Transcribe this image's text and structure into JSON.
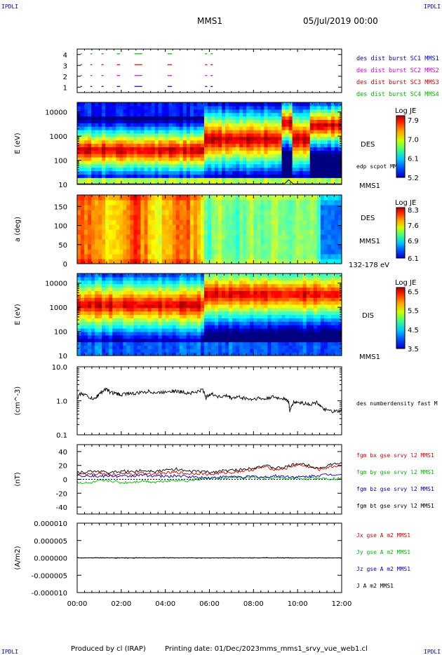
{
  "header": {
    "corner_tl": "IPDLI",
    "corner_tr": "IPDLI",
    "corner_bl": "IPDLI",
    "corner_br": "IPDLI",
    "mission": "MMS1",
    "date": "05/Jul/2019 00:00"
  },
  "footer": {
    "produced_by": "Produced by cl (IRAP)",
    "printing_date": "Printing date: 01/Dec/2023",
    "file_name": "mms_mms1_srvy_vue_web1.cl"
  },
  "colors": {
    "sc1": "#0000cc",
    "sc2": "#dd00dd",
    "sc3": "#dd0000",
    "sc4": "#00bb00",
    "bx": "#dd0000",
    "by": "#00bb00",
    "bz": "#0000cc",
    "bt": "#000000"
  },
  "chart_data": [
    {
      "id": "burst",
      "type": "scatter",
      "ylim": [
        0.5,
        4.5
      ],
      "yticks": [
        "1",
        "2",
        "3",
        "4"
      ],
      "burst_intervals_hours": [
        [
          0.15,
          0.22
        ],
        [
          0.6,
          0.68
        ],
        [
          1.1,
          1.2
        ],
        [
          1.8,
          1.95
        ],
        [
          2.6,
          2.95
        ],
        [
          4.1,
          4.3
        ],
        [
          5.8,
          5.9
        ],
        [
          6.05,
          6.15
        ]
      ],
      "legend": [
        {
          "label": "des dist burst SC1 MMS1",
          "color": "#0000cc"
        },
        {
          "label": "des dist burst SC2 MMS2",
          "color": "#dd00dd"
        },
        {
          "label": "des dist burst SC3 MMS3",
          "color": "#dd0000"
        },
        {
          "label": "des dist burst SC4 MMS4",
          "color": "#00bb00"
        }
      ]
    },
    {
      "id": "des_energy",
      "type": "heatmap",
      "ylabel": "E (eV)",
      "ylog": true,
      "ylim": [
        10,
        25000
      ],
      "yticks": [
        "10",
        "100",
        "1000",
        "10000"
      ],
      "right_labels": [
        "DES",
        "edp scpot MMS1",
        "MMS1"
      ],
      "colorbar": {
        "title": "Log JE",
        "range": [
          5.2,
          8.1
        ],
        "ticks": [
          "7.9",
          "7.0",
          "6.1",
          "5.2"
        ]
      }
    },
    {
      "id": "des_pitch",
      "type": "heatmap",
      "ylabel": "a (deg)",
      "ylim": [
        0,
        180
      ],
      "yticks": [
        "0",
        "50",
        "100",
        "150"
      ],
      "right_labels": [
        "DES",
        "MMS1",
        "132-178 eV"
      ],
      "colorbar": {
        "title": "Log JE",
        "range": [
          6.1,
          8.4
        ],
        "ticks": [
          "8.3",
          "7.6",
          "6.9",
          "6.1"
        ]
      }
    },
    {
      "id": "dis_energy",
      "type": "heatmap",
      "ylabel": "E (eV)",
      "ylog": true,
      "ylim": [
        10,
        25000
      ],
      "yticks": [
        "10",
        "100",
        "1000",
        "10000"
      ],
      "right_labels": [
        "DIS",
        "MMS1"
      ],
      "colorbar": {
        "title": "Log JE",
        "range": [
          3.5,
          6.7
        ],
        "ticks": [
          "6.5",
          "5.5",
          "4.5",
          "3.5"
        ]
      }
    },
    {
      "id": "density",
      "type": "line",
      "ylabel": "(cm^-3)",
      "ylog": true,
      "ylim": [
        0.1,
        10.0
      ],
      "yticks": [
        "0.1",
        "1.0",
        "10.0"
      ],
      "series": [
        {
          "name": "des numberdensity fast M",
          "color": "#000000",
          "x": [
            0,
            0.2,
            0.5,
            0.8,
            1.0,
            1.3,
            1.5,
            1.8,
            2.0,
            2.3,
            2.6,
            3.0,
            3.3,
            3.6,
            3.9,
            4.2,
            4.5,
            4.8,
            5.1,
            5.4,
            5.7,
            5.85,
            6.0,
            6.2,
            6.5,
            6.8,
            7.0,
            7.3,
            7.6,
            7.9,
            8.2,
            8.5,
            8.8,
            9.1,
            9.4,
            9.6,
            9.65,
            9.8,
            10.0,
            10.3,
            10.6,
            10.9,
            11.1,
            11.4,
            11.7,
            12.0
          ],
          "values": [
            1.2,
            1.7,
            1.3,
            1.1,
            1.6,
            2.2,
            1.8,
            1.6,
            1.5,
            1.7,
            1.6,
            1.8,
            1.9,
            1.7,
            1.8,
            2.0,
            1.9,
            1.8,
            1.7,
            1.8,
            2.1,
            1.2,
            1.6,
            1.5,
            1.3,
            1.4,
            1.2,
            1.3,
            1.2,
            1.1,
            1.2,
            1.1,
            1.3,
            1.2,
            1.2,
            0.9,
            0.45,
            0.9,
            0.9,
            0.85,
            0.8,
            0.9,
            0.6,
            0.5,
            0.48,
            0.5
          ]
        }
      ]
    },
    {
      "id": "bfield",
      "type": "line",
      "ylabel": "(nT)",
      "ylim": [
        -50,
        50
      ],
      "yticks": [
        "-40",
        "-20",
        "0",
        "20",
        "40"
      ],
      "series": [
        {
          "name": "fgm bx gse srvy l2 MMS1",
          "color": "#dd0000",
          "x": [
            0,
            0.5,
            1,
            1.5,
            2,
            2.5,
            3,
            3.5,
            4,
            4.5,
            5,
            5.5,
            6,
            6.5,
            7,
            7.5,
            8,
            8.5,
            9,
            9.5,
            10,
            10.5,
            11,
            11.5,
            12
          ],
          "values": [
            8,
            7,
            9,
            6,
            8,
            7,
            9,
            8,
            9,
            10,
            8,
            9,
            7,
            9,
            10,
            12,
            14,
            18,
            14,
            16,
            21,
            18,
            14,
            18,
            20
          ]
        },
        {
          "name": "fgm by gse srvy l2 MMS1",
          "color": "#00bb00",
          "x": [
            0,
            0.5,
            1,
            1.5,
            2,
            2.5,
            3,
            3.5,
            4,
            4.5,
            5,
            5.5,
            6,
            6.5,
            7,
            7.5,
            8,
            8.5,
            9,
            9.5,
            10,
            10.5,
            11,
            11.5,
            12
          ],
          "values": [
            -4,
            -6,
            -3,
            -2,
            -5,
            -4,
            -2,
            -4,
            -2,
            -1,
            -2,
            0,
            2,
            1,
            3,
            2,
            3,
            1,
            2,
            1,
            2,
            1,
            2,
            1,
            1
          ]
        },
        {
          "name": "fgm bz gse srvy l2 MMS1",
          "color": "#0000cc",
          "x": [
            0,
            0.5,
            1,
            1.5,
            2,
            2.5,
            3,
            3.5,
            4,
            4.5,
            5,
            5.5,
            6,
            6.5,
            7,
            7.5,
            8,
            8.5,
            9,
            9.5,
            10,
            10.5,
            11,
            11.5,
            12
          ],
          "values": [
            5,
            6,
            4,
            5,
            4,
            5,
            6,
            5,
            4,
            5,
            4,
            3,
            2,
            3,
            4,
            3,
            4,
            3,
            5,
            4,
            3,
            4,
            6,
            7,
            7
          ]
        },
        {
          "name": "fgm bt gse srvy l2 MMS1",
          "color": "#000000",
          "x": [
            0,
            0.5,
            1,
            1.5,
            2,
            2.5,
            3,
            3.5,
            4,
            4.5,
            5,
            5.5,
            6,
            6.5,
            7,
            7.5,
            8,
            8.5,
            9,
            9.5,
            10,
            10.5,
            11,
            11.5,
            12
          ],
          "values": [
            10,
            11,
            12,
            9,
            12,
            11,
            13,
            12,
            13,
            15,
            11,
            12,
            10,
            12,
            13,
            14,
            17,
            20,
            16,
            18,
            23,
            20,
            16,
            21,
            23
          ]
        }
      ]
    },
    {
      "id": "current",
      "type": "line",
      "ylabel": "(A/m2)",
      "ylim": [
        -1e-05,
        1e-05
      ],
      "yticks": [
        "-0.000010",
        "-0.000005",
        "0.000000",
        "0.000005",
        "0.000010"
      ],
      "xlabel": "",
      "xticks": [
        "00:00",
        "02:00",
        "04:00",
        "06:00",
        "08:00",
        "10:00",
        "12:00"
      ],
      "xlim": [
        0,
        12
      ],
      "series": [
        {
          "name": "Jx gse A m2 MMS1",
          "color": "#dd0000",
          "x": [
            0,
            12
          ],
          "values": [
            0,
            0
          ]
        },
        {
          "name": "Jy gse A m2 MMS1",
          "color": "#00bb00",
          "x": [
            0,
            12
          ],
          "values": [
            0,
            0
          ]
        },
        {
          "name": "Jz gse A m2 MMS1",
          "color": "#0000cc",
          "x": [
            0,
            12
          ],
          "values": [
            0,
            0
          ]
        },
        {
          "name": "J A m2 MMS1",
          "color": "#000000",
          "x": [
            0,
            12
          ],
          "values": [
            0,
            0
          ]
        }
      ]
    }
  ]
}
